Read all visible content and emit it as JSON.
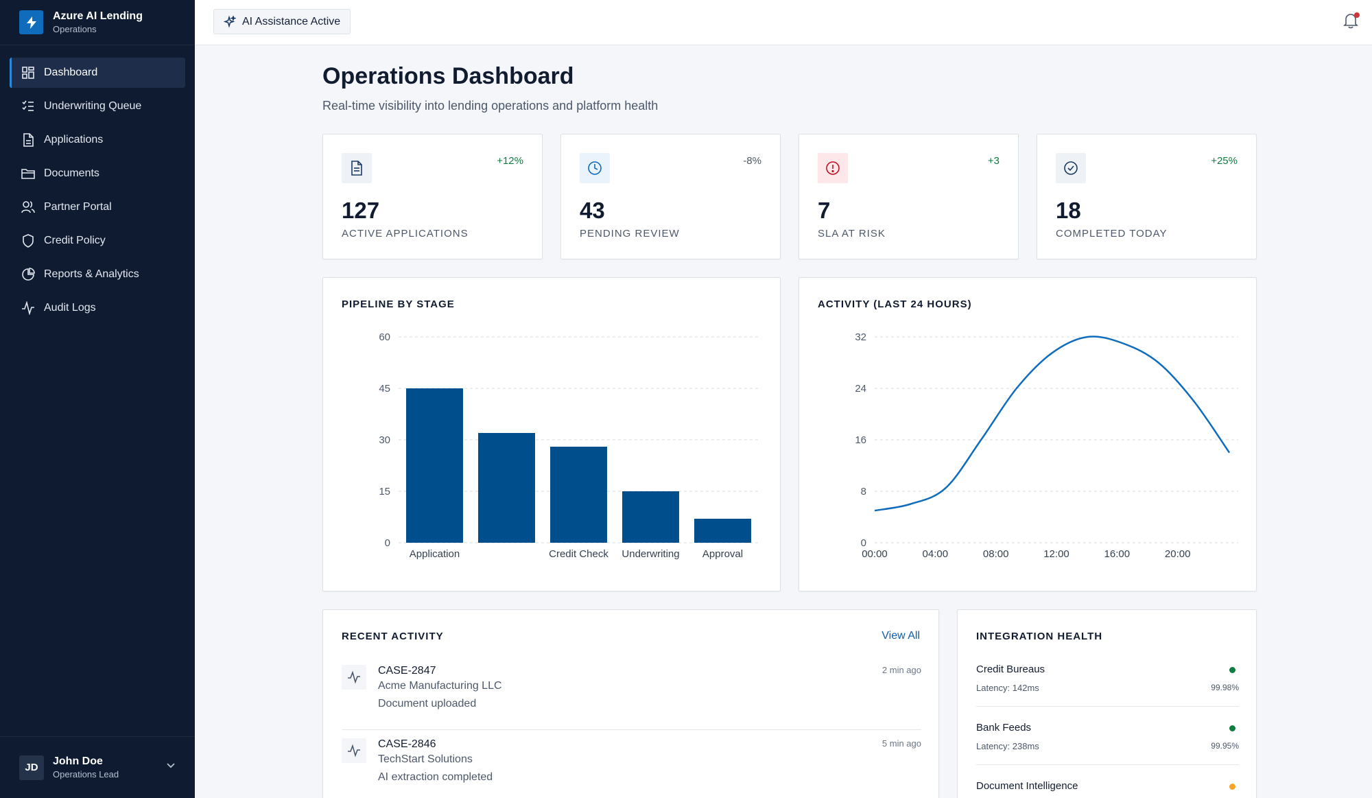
{
  "brand": {
    "title": "Azure AI Lending",
    "subtitle": "Operations"
  },
  "nav": {
    "items": [
      {
        "label": "Dashboard",
        "icon": "grid-icon"
      },
      {
        "label": "Underwriting Queue",
        "icon": "checklist-icon"
      },
      {
        "label": "Applications",
        "icon": "document-icon"
      },
      {
        "label": "Documents",
        "icon": "folder-icon"
      },
      {
        "label": "Partner Portal",
        "icon": "users-icon"
      },
      {
        "label": "Credit Policy",
        "icon": "shield-icon"
      },
      {
        "label": "Reports & Analytics",
        "icon": "pie-chart-icon"
      },
      {
        "label": "Audit Logs",
        "icon": "activity-icon"
      }
    ]
  },
  "user": {
    "initials": "JD",
    "name": "John Doe",
    "role": "Operations Lead"
  },
  "topbar": {
    "ai_badge": "AI Assistance Active"
  },
  "header": {
    "title": "Operations Dashboard",
    "subtitle": "Real-time visibility into lending operations and platform health"
  },
  "kpis": [
    {
      "value": "127",
      "label": "ACTIVE APPLICATIONS",
      "trend": "+12%",
      "trend_color": "#107c41",
      "icon": "document-icon",
      "icon_bg": "#eef1f5",
      "icon_color": "#1b3a63"
    },
    {
      "value": "43",
      "label": "PENDING REVIEW",
      "trend": "-8%",
      "trend_color": "#4c586a",
      "icon": "clock-icon",
      "icon_bg": "#eaf2fb",
      "icon_color": "#0f6cbd"
    },
    {
      "value": "7",
      "label": "SLA AT RISK",
      "trend": "+3",
      "trend_color": "#107c41",
      "icon": "alert-circle-icon",
      "icon_bg": "#fde7e9",
      "icon_color": "#c50f1f"
    },
    {
      "value": "18",
      "label": "COMPLETED TODAY",
      "trend": "+25%",
      "trend_color": "#107c41",
      "icon": "check-circle-icon",
      "icon_bg": "#eef1f5",
      "icon_color": "#1b3a63"
    }
  ],
  "pipeline": {
    "title": "PIPELINE BY STAGE"
  },
  "activity_chart": {
    "title": "ACTIVITY (LAST 24 HOURS)"
  },
  "chart_data": [
    {
      "type": "bar",
      "title": "PIPELINE BY STAGE",
      "categories": [
        "Application",
        "",
        "Credit Check",
        "Underwriting",
        "Approval"
      ],
      "values": [
        45,
        32,
        28,
        15,
        7
      ],
      "yticks": [
        0,
        15,
        30,
        45,
        60
      ],
      "ylim": [
        0,
        60
      ],
      "color": "#004e8c",
      "grid": true
    },
    {
      "type": "line",
      "title": "ACTIVITY (LAST 24 HOURS)",
      "x": [
        0,
        2,
        4,
        6,
        8,
        10,
        12,
        14,
        16,
        18,
        20
      ],
      "values": [
        5,
        6,
        8.5,
        16,
        24,
        29.5,
        32,
        31,
        28,
        22,
        14
      ],
      "xticks": [
        "00:00",
        "04:00",
        "08:00",
        "12:00",
        "16:00",
        "20:00"
      ],
      "yticks": [
        0,
        8,
        16,
        24,
        32
      ],
      "ylim": [
        0,
        32
      ],
      "color": "#0f6cbd",
      "grid": true
    }
  ],
  "recent_activity": {
    "title": "RECENT ACTIVITY",
    "view_all": "View All",
    "items": [
      {
        "case": "CASE-2847",
        "company": "Acme Manufacturing LLC",
        "action": "Document uploaded",
        "time": "2 min ago"
      },
      {
        "case": "CASE-2846",
        "company": "TechStart Solutions",
        "action": "AI extraction completed",
        "time": "5 min ago"
      }
    ]
  },
  "integration_health": {
    "title": "INTEGRATION HEALTH",
    "items": [
      {
        "name": "Credit Bureaus",
        "latency": "Latency: 142ms",
        "uptime": "99.98%",
        "status_color": "#107c41"
      },
      {
        "name": "Bank Feeds",
        "latency": "Latency: 238ms",
        "uptime": "99.95%",
        "status_color": "#107c41"
      },
      {
        "name": "Document Intelligence",
        "latency": "",
        "uptime": "",
        "status_color": "#f7a42a"
      }
    ]
  }
}
